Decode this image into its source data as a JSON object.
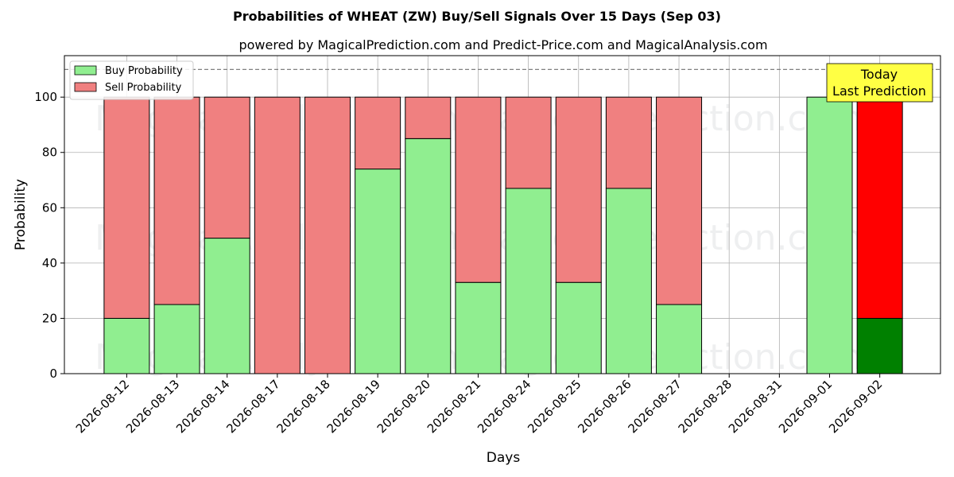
{
  "title": "Probabilities of WHEAT (ZW) Buy/Sell Signals Over 15 Days (Sep 03)",
  "subtitle": "powered by MagicalPrediction.com and Predict-Price.com and MagicalAnalysis.com",
  "watermarks": [
    "MagicalAnalysis.com",
    "MagicalPrediction.com"
  ],
  "today_label": [
    "Today",
    "Last Prediction"
  ],
  "colors": {
    "buy": "#90ee90",
    "sell": "#f08080",
    "today_buy": "#008000",
    "today_sell": "#ff0000",
    "today_box": "#ffff44",
    "grid": "#b0b0b0",
    "dashed_line": "#808080"
  },
  "chart_data": {
    "type": "bar",
    "stacked": true,
    "xlabel": "Days",
    "ylabel": "Probability",
    "ylim": [
      0,
      115
    ],
    "yticks": [
      0,
      20,
      40,
      60,
      80,
      100
    ],
    "reference_line": 110,
    "grid": true,
    "legend_position": "upper-left",
    "categories": [
      "2026-08-12",
      "2026-08-13",
      "2026-08-14",
      "2026-08-17",
      "2026-08-18",
      "2026-08-19",
      "2026-08-20",
      "2026-08-21",
      "2026-08-24",
      "2026-08-25",
      "2026-08-26",
      "2026-08-27",
      "2026-08-28",
      "2026-08-31",
      "2026-09-01",
      "2026-09-02"
    ],
    "series": [
      {
        "name": "Buy Probability",
        "values": [
          20,
          25,
          49,
          0,
          0,
          74,
          85,
          33,
          67,
          33,
          67,
          25,
          null,
          null,
          100,
          20
        ]
      },
      {
        "name": "Sell Probability",
        "values": [
          80,
          75,
          51,
          100,
          100,
          26,
          15,
          67,
          33,
          67,
          33,
          75,
          null,
          null,
          0,
          80
        ]
      }
    ],
    "today_index": 15
  }
}
